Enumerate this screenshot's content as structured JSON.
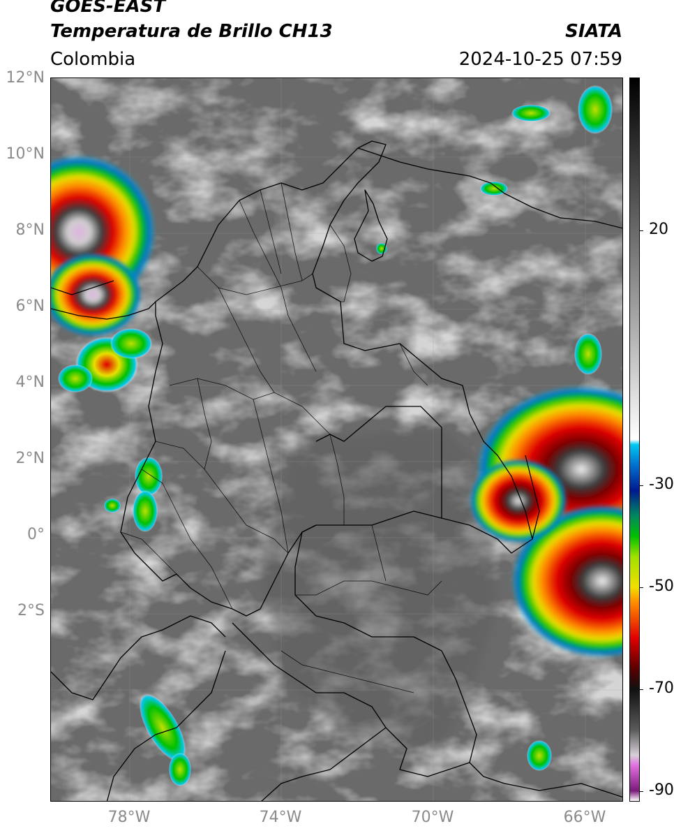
{
  "header": {
    "line1": "GOES-EAST",
    "line2": "Temperatura de Brillo CH13",
    "region": "Colombia",
    "org": "SIATA",
    "datetime": "2024-10-25 07:59"
  },
  "axes": {
    "lat_labels": [
      "12°N",
      "10°N",
      "8°N",
      "6°N",
      "4°N",
      "2°N",
      "0°",
      "2°S"
    ],
    "lon_labels": [
      "78°W",
      "74°W",
      "70°W",
      "66°W"
    ]
  },
  "colorbar": {
    "ticks": [
      "20",
      "-30",
      "-50",
      "-70",
      "-90"
    ],
    "tick_values": [
      20,
      -30,
      -50,
      -70,
      -90
    ],
    "range": [
      -92,
      50
    ],
    "stops": [
      {
        "t": -92,
        "c": "#ffffff"
      },
      {
        "t": -90,
        "c": "#7a1a7a"
      },
      {
        "t": -85,
        "c": "#e070e0"
      },
      {
        "t": -83,
        "c": "#d8d0d8"
      },
      {
        "t": -78,
        "c": "#5a5a5a"
      },
      {
        "t": -70,
        "c": "#101010"
      },
      {
        "t": -66,
        "c": "#5a0000"
      },
      {
        "t": -60,
        "c": "#e00000"
      },
      {
        "t": -53,
        "c": "#ff8c00"
      },
      {
        "t": -50,
        "c": "#f0e000"
      },
      {
        "t": -44,
        "c": "#a0e000"
      },
      {
        "t": -40,
        "c": "#00c000"
      },
      {
        "t": -36,
        "c": "#008860"
      },
      {
        "t": -31,
        "c": "#001a90"
      },
      {
        "t": -26,
        "c": "#0070d0"
      },
      {
        "t": -22,
        "c": "#00c8f0"
      },
      {
        "t": -21,
        "c": "#ffffff"
      },
      {
        "t": 0,
        "c": "#b0b0b0"
      },
      {
        "t": 50,
        "c": "#000000"
      }
    ]
  },
  "colors": {
    "land_gray": "#6d6d6d",
    "cold_cloud": "#e8e8e8",
    "border": "#000000"
  }
}
